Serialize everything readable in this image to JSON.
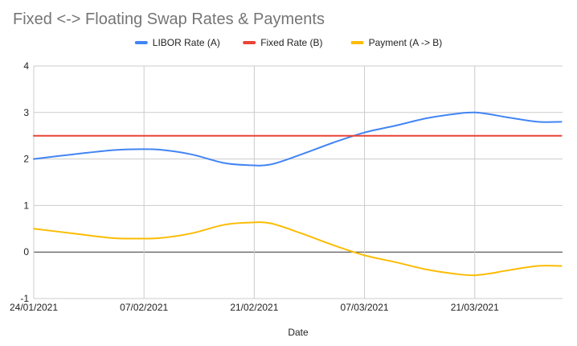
{
  "chart_data": {
    "type": "line",
    "title": "Fixed <-> Floating Swap Rates & Payments",
    "xlabel": "Date",
    "ylabel": "",
    "ylim": [
      -1,
      4
    ],
    "yticks": [
      -1,
      0,
      1,
      2,
      3,
      4
    ],
    "xlim": [
      0,
      66
    ],
    "xticks": [
      {
        "day": 0,
        "label": "24/01/2021"
      },
      {
        "day": 14,
        "label": "07/02/2021"
      },
      {
        "day": 28,
        "label": "21/02/2021"
      },
      {
        "day": 42,
        "label": "07/03/2021"
      },
      {
        "day": 56,
        "label": "21/03/2021"
      }
    ],
    "legend_position": "top",
    "grid": true,
    "x_units": "days since 24/01/2021",
    "series": [
      {
        "name": "LIBOR Rate (A)",
        "color": "#4285f4",
        "x": [
          0,
          5,
          10,
          13,
          16,
          20,
          24,
          27,
          30,
          34,
          38,
          42,
          46,
          50,
          54,
          56,
          58,
          60,
          64,
          67
        ],
        "values": [
          2.0,
          2.1,
          2.19,
          2.21,
          2.2,
          2.1,
          1.92,
          1.87,
          1.88,
          2.1,
          2.35,
          2.57,
          2.72,
          2.88,
          2.98,
          3.0,
          2.96,
          2.9,
          2.8,
          2.8
        ]
      },
      {
        "name": "Fixed Rate (B)",
        "color": "#ea4335",
        "x": [
          0,
          67
        ],
        "values": [
          2.5,
          2.5
        ]
      },
      {
        "name": "Payment (A -> B)",
        "color": "#fbbc04",
        "x": [
          0,
          5,
          10,
          13,
          16,
          20,
          24,
          27,
          30,
          34,
          38,
          42,
          46,
          50,
          54,
          56,
          58,
          60,
          64,
          67
        ],
        "values": [
          0.5,
          0.4,
          0.3,
          0.29,
          0.3,
          0.4,
          0.58,
          0.63,
          0.62,
          0.4,
          0.15,
          -0.07,
          -0.22,
          -0.38,
          -0.48,
          -0.5,
          -0.46,
          -0.4,
          -0.3,
          -0.3
        ]
      }
    ]
  }
}
